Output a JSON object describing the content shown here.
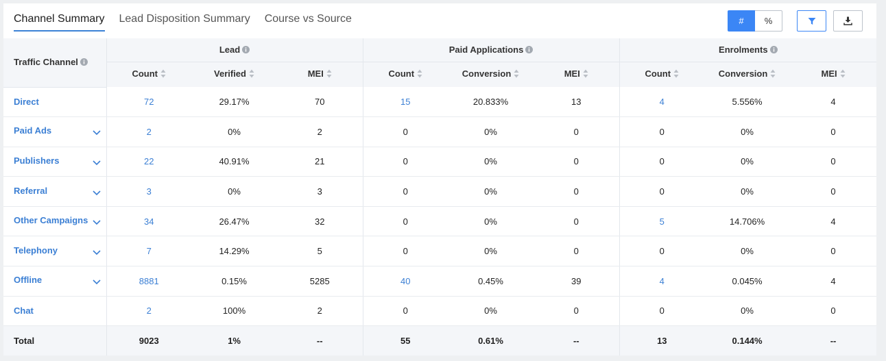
{
  "tabs": [
    {
      "label": "Channel Summary",
      "active": true
    },
    {
      "label": "Lead Disposition Summary",
      "active": false
    },
    {
      "label": "Course vs Source",
      "active": false
    }
  ],
  "toolbar": {
    "count_label": "#",
    "percent_label": "%",
    "filter_icon": "filter-icon",
    "download_icon": "download-icon"
  },
  "table": {
    "channel_header": "Traffic Channel",
    "groups": [
      "Lead",
      "Paid Applications",
      "Enrolments"
    ],
    "subheaders": [
      "Count",
      "Verified",
      "MEI",
      "Count",
      "Conversion",
      "MEI",
      "Count",
      "Conversion",
      "MEI"
    ],
    "rows": [
      {
        "channel": "Direct",
        "expandable": false,
        "cells": [
          "72",
          "29.17%",
          "70",
          "15",
          "20.833%",
          "13",
          "4",
          "5.556%",
          "4"
        ]
      },
      {
        "channel": "Paid Ads",
        "expandable": true,
        "cells": [
          "2",
          "0%",
          "2",
          "0",
          "0%",
          "0",
          "0",
          "0%",
          "0"
        ]
      },
      {
        "channel": "Publishers",
        "expandable": true,
        "cells": [
          "22",
          "40.91%",
          "21",
          "0",
          "0%",
          "0",
          "0",
          "0%",
          "0"
        ]
      },
      {
        "channel": "Referral",
        "expandable": true,
        "cells": [
          "3",
          "0%",
          "3",
          "0",
          "0%",
          "0",
          "0",
          "0%",
          "0"
        ]
      },
      {
        "channel": "Other Campaigns",
        "expandable": true,
        "cells": [
          "34",
          "26.47%",
          "32",
          "0",
          "0%",
          "0",
          "5",
          "14.706%",
          "4"
        ]
      },
      {
        "channel": "Telephony",
        "expandable": true,
        "cells": [
          "7",
          "14.29%",
          "5",
          "0",
          "0%",
          "0",
          "0",
          "0%",
          "0"
        ]
      },
      {
        "channel": "Offline",
        "expandable": true,
        "cells": [
          "8881",
          "0.15%",
          "5285",
          "40",
          "0.45%",
          "39",
          "4",
          "0.045%",
          "4"
        ]
      },
      {
        "channel": "Chat",
        "expandable": false,
        "cells": [
          "2",
          "100%",
          "2",
          "0",
          "0%",
          "0",
          "0",
          "0%",
          "0"
        ]
      }
    ],
    "total": {
      "label": "Total",
      "cells": [
        "9023",
        "1%",
        "--",
        "55",
        "0.61%",
        "--",
        "13",
        "0.144%",
        "--"
      ]
    }
  },
  "colors": {
    "accent": "#3b86f5",
    "link": "#3b7fd4",
    "header_bg": "#f4f6f9"
  }
}
